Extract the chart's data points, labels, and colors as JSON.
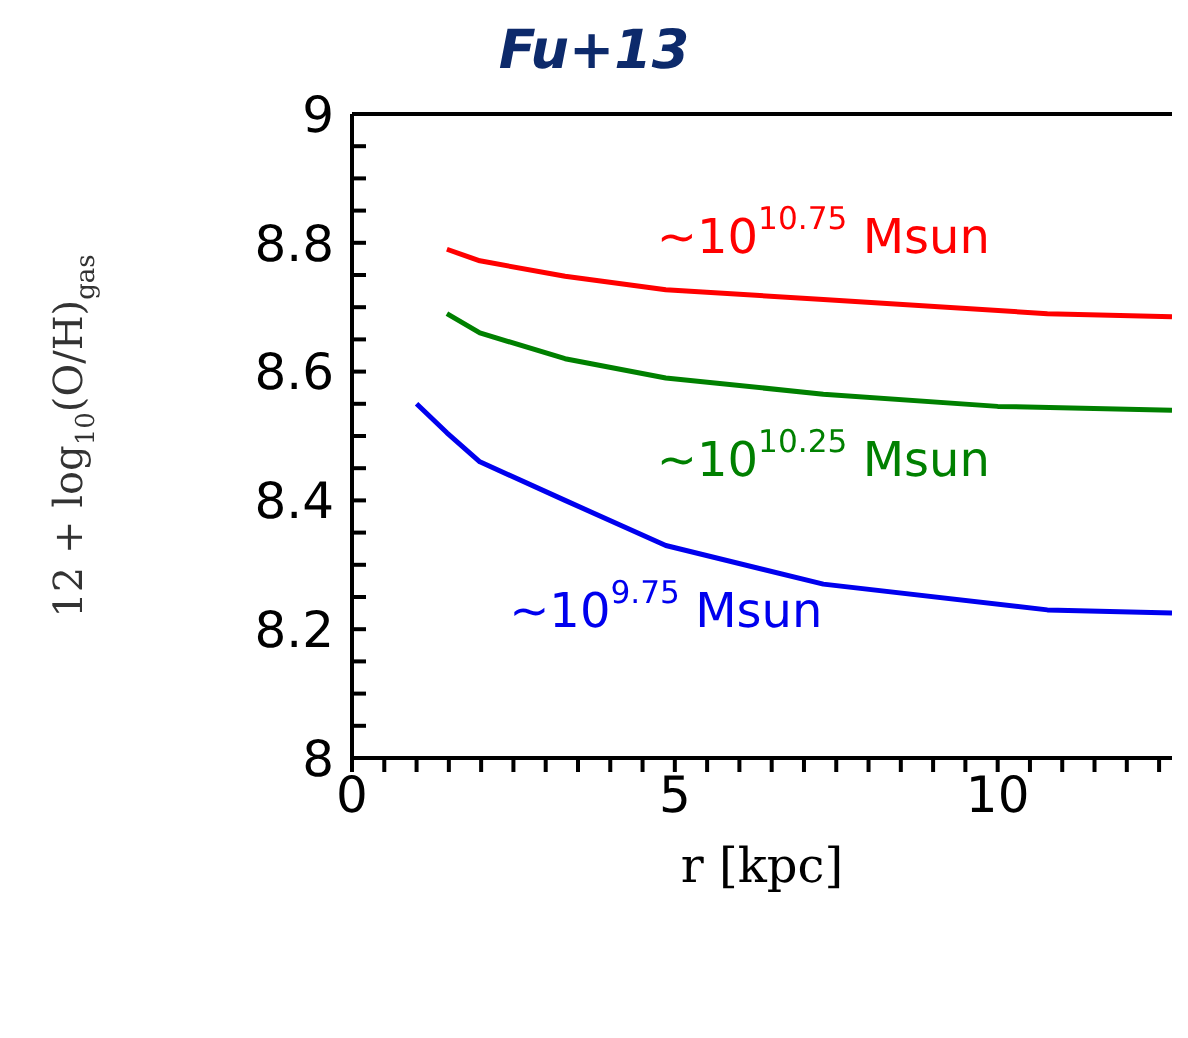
{
  "chart_data": {
    "type": "line",
    "title": "Fu+13",
    "xlabel": "r [kpc]",
    "ylabel": "12 + log$_{10}$(O/H)$_{gas}$",
    "xlim": [
      0,
      12.7
    ],
    "ylim": [
      8,
      9
    ],
    "xticks": [
      0,
      {
        "value": 0.5,
        "label": null
      },
      {
        "value": 1,
        "label": null
      },
      {
        "value": 1.5,
        "label": null
      },
      {
        "value": 2,
        "label": null
      },
      {
        "value": 2.5,
        "label": null
      },
      {
        "value": 3,
        "label": null
      },
      {
        "value": 3.5,
        "label": null
      },
      {
        "value": 4,
        "label": null
      },
      {
        "value": 4.5,
        "label": null
      },
      5,
      {
        "value": 5.5,
        "label": null
      },
      {
        "value": 6,
        "label": null
      },
      {
        "value": 6.5,
        "label": null
      },
      {
        "value": 7,
        "label": null
      },
      {
        "value": 7.5,
        "label": null
      },
      {
        "value": 8,
        "label": null
      },
      {
        "value": 8.5,
        "label": null
      },
      {
        "value": 9,
        "label": null
      },
      {
        "value": 9.5,
        "label": null
      },
      10,
      {
        "value": 10.5,
        "label": null
      },
      {
        "value": 11,
        "label": null
      },
      {
        "value": 11.5,
        "label": null
      },
      {
        "value": 12,
        "label": null
      },
      {
        "value": 12.5,
        "label": null
      }
    ],
    "yticks": [
      8,
      {
        "value": 8.05,
        "label": null
      },
      {
        "value": 8.1,
        "label": null
      },
      {
        "value": 8.15,
        "label": null
      },
      8.2,
      {
        "value": 8.25,
        "label": null
      },
      {
        "value": 8.3,
        "label": null
      },
      {
        "value": 8.35,
        "label": null
      },
      8.4,
      {
        "value": 8.45,
        "label": null
      },
      {
        "value": 8.5,
        "label": null
      },
      {
        "value": 8.55,
        "label": null
      },
      8.6,
      {
        "value": 8.65,
        "label": null
      },
      {
        "value": 8.7,
        "label": null
      },
      {
        "value": 8.75,
        "label": null
      },
      8.8,
      {
        "value": 8.85,
        "label": null
      },
      {
        "value": 8.9,
        "label": null
      },
      {
        "value": 8.95,
        "label": null
      },
      9
    ],
    "marker": "none",
    "line_style": "solid",
    "series": [
      {
        "name": "~10$^{10.75}$ Msun",
        "color": "#ff0000",
        "x": [
          1.47,
          1.98,
          3.3,
          4.86,
          7.3,
          10.77,
          12.7
        ],
        "values": [
          8.79,
          8.772,
          8.748,
          8.727,
          8.712,
          8.69,
          8.685
        ]
      },
      {
        "name": "~10$^{10.25}$ Msun",
        "color": "#008000",
        "x": [
          1.47,
          1.98,
          3.3,
          4.86,
          7.3,
          10.0,
          12.7
        ],
        "values": [
          8.69,
          8.66,
          8.62,
          8.59,
          8.565,
          8.546,
          8.54
        ]
      },
      {
        "name": "~10$^{9.75}$ Msun",
        "color": "#0000ee",
        "x": [
          1.0,
          1.47,
          1.98,
          3.3,
          4.86,
          7.3,
          10.77,
          12.7
        ],
        "values": [
          8.55,
          8.505,
          8.46,
          8.4,
          8.33,
          8.27,
          8.23,
          8.225
        ]
      }
    ]
  }
}
